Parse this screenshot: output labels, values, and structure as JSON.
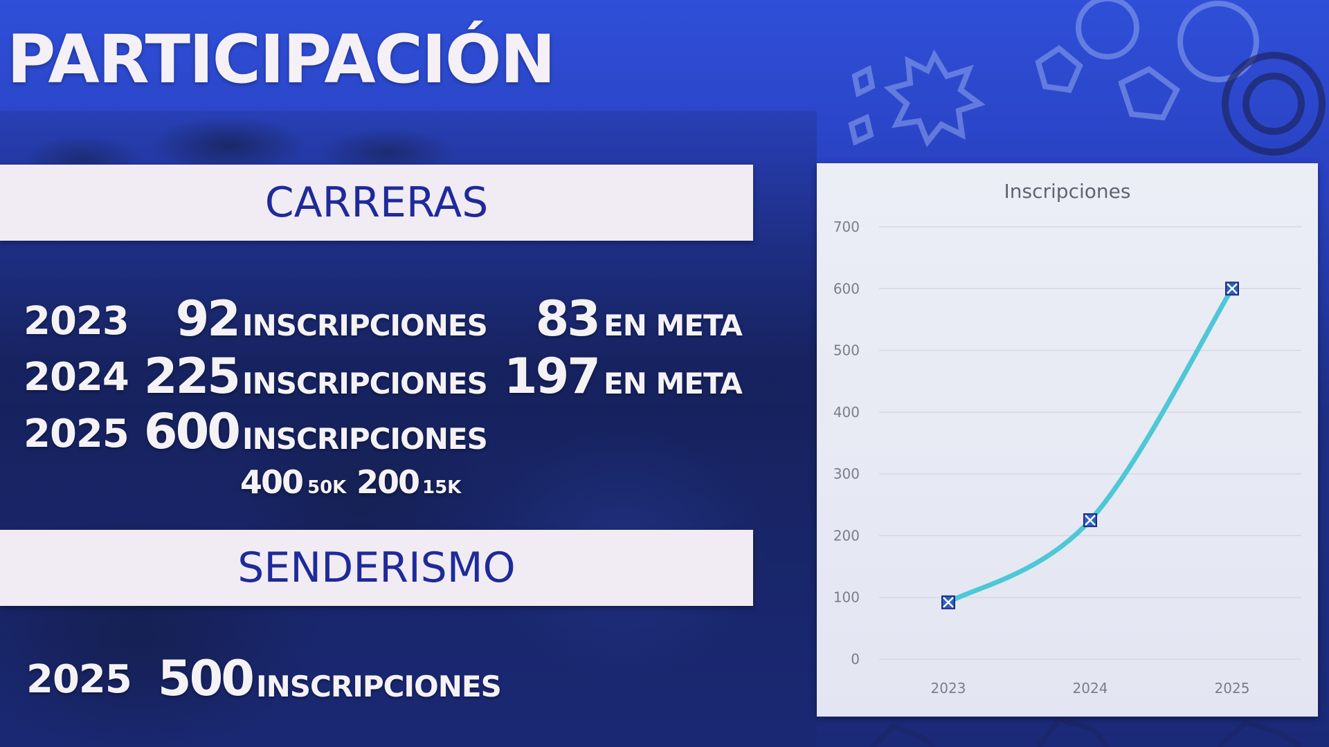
{
  "slide": {
    "title": "PARTICIPACIÓN"
  },
  "carreras": {
    "heading": "CARRERAS",
    "rows": [
      {
        "year": "2023",
        "inscripciones": "92",
        "inscripciones_label": "INSCRIPCIONES",
        "meta": "83",
        "meta_label": "EN META"
      },
      {
        "year": "2024",
        "inscripciones": "225",
        "inscripciones_label": "INSCRIPCIONES",
        "meta": "197",
        "meta_label": "EN META"
      },
      {
        "year": "2025",
        "inscripciones": "600",
        "inscripciones_label": "INSCRIPCIONES"
      }
    ],
    "breakdown": [
      {
        "value": "400",
        "unit": "50K"
      },
      {
        "value": "200",
        "unit": "15K"
      }
    ]
  },
  "senderismo": {
    "heading": "SENDERISMO",
    "row": {
      "year": "2025",
      "inscripciones": "500",
      "inscripciones_label": "INSCRIPCIONES"
    }
  },
  "colors": {
    "banner_text": "#1f2a9a",
    "line": "#4ec7d6",
    "marker_fill": "#2d5fc9",
    "marker_stroke": "#1b2f86",
    "grid": "#d4d7e4",
    "axis_text": "#7a7d8a"
  },
  "chart_data": {
    "type": "line",
    "title": "Inscripciones",
    "categories": [
      "2023",
      "2024",
      "2025"
    ],
    "values": [
      92,
      225,
      600
    ],
    "ylim": [
      0,
      700
    ],
    "yticks": [
      0,
      100,
      200,
      300,
      400,
      500,
      600,
      700
    ],
    "grid": true,
    "smooth": true,
    "marker": "x-square",
    "xlabel": "",
    "ylabel": ""
  }
}
